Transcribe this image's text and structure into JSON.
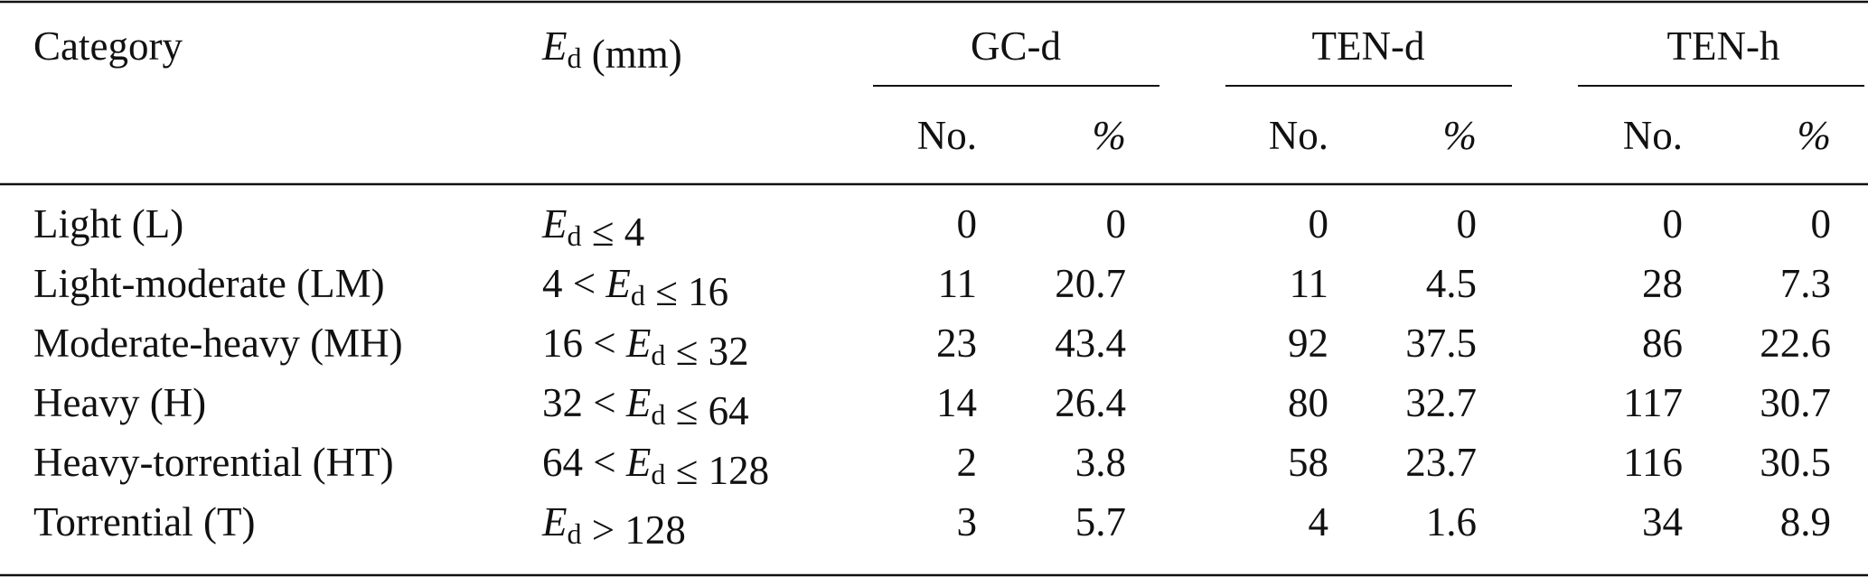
{
  "table": {
    "header": {
      "category": "Category",
      "symbol": "E",
      "subscript": "d",
      "unit": "(mm)",
      "groups": [
        "GC-d",
        "TEN-d",
        "TEN-h"
      ],
      "subheaders": [
        "No.",
        "%"
      ]
    },
    "rows": [
      {
        "category": "Light (L)",
        "range": {
          "upper": "≤ 4"
        },
        "values": [
          0,
          0,
          0,
          0,
          0,
          0
        ]
      },
      {
        "category": "Light-moderate (LM)",
        "range": {
          "lower": "4 <",
          "upper": "≤ 16"
        },
        "values": [
          11,
          20.7,
          11,
          4.5,
          28,
          7.3
        ]
      },
      {
        "category": "Moderate-heavy (MH)",
        "range": {
          "lower": "16 <",
          "upper": "≤ 32"
        },
        "values": [
          23,
          43.4,
          92,
          37.5,
          86,
          22.6
        ]
      },
      {
        "category": "Heavy (H)",
        "range": {
          "lower": "32 <",
          "upper": "≤ 64"
        },
        "values": [
          14,
          26.4,
          80,
          32.7,
          117,
          30.7
        ]
      },
      {
        "category": "Heavy-torrential (HT)",
        "range": {
          "lower": "64 <",
          "upper": "≤ 128"
        },
        "values": [
          2,
          3.8,
          58,
          23.7,
          116,
          30.5
        ]
      },
      {
        "category": "Torrential (T)",
        "range": {
          "upper": "> 128"
        },
        "values": [
          3,
          5.7,
          4,
          1.6,
          34,
          8.9
        ]
      }
    ]
  }
}
